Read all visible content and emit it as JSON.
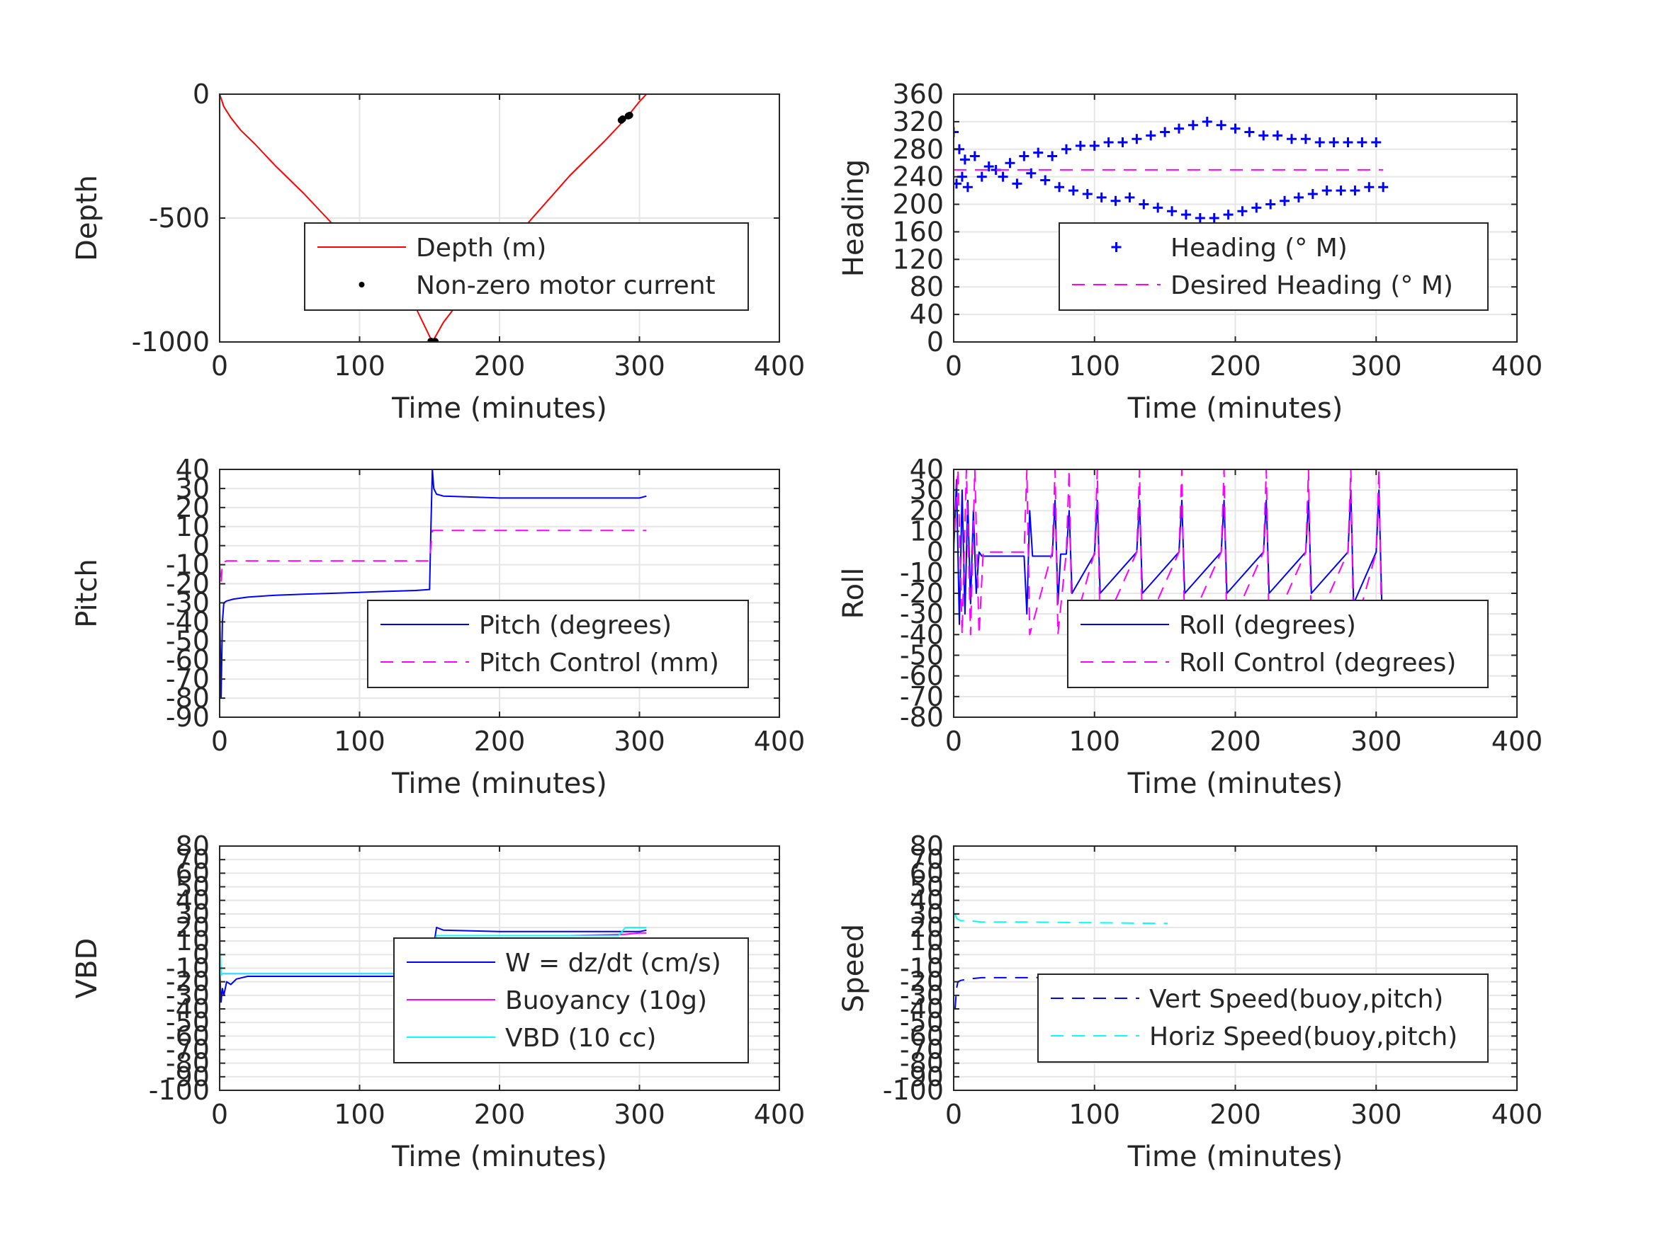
{
  "colors": {
    "red": "#ff0000",
    "blue": "#0000ff",
    "magenta": "#ff00ff",
    "cyan": "#00ffff",
    "black": "#000000",
    "grid": "#e6e6e6",
    "axis": "#262626"
  },
  "chart_data": [
    {
      "type": "line",
      "ylabel": "Depth",
      "xlabel": "Time (minutes)",
      "xlim": [
        0,
        400
      ],
      "ylim": [
        -1000,
        0
      ],
      "xticks": [
        0,
        100,
        200,
        300,
        400
      ],
      "yticks": [
        0,
        -500,
        -1000
      ],
      "grid": true,
      "legend_position": "lower-right",
      "series": [
        {
          "name": "Depth (m)",
          "color": "red",
          "style": "solid",
          "x": [
            0,
            3,
            8,
            15,
            25,
            40,
            60,
            80,
            100,
            120,
            140,
            152,
            160,
            175,
            200,
            225,
            250,
            275,
            290,
            300,
            305
          ],
          "y": [
            0,
            -50,
            -95,
            -145,
            -200,
            -290,
            -400,
            -520,
            -630,
            -740,
            -860,
            -1000,
            -920,
            -810,
            -650,
            -490,
            -330,
            -190,
            -100,
            -30,
            0
          ]
        },
        {
          "name": "Non-zero motor current",
          "color": "black",
          "style": "dot",
          "x": [
            151,
            152,
            153,
            154,
            287,
            288,
            292,
            293
          ],
          "y": [
            -997,
            -1000,
            -1000,
            -998,
            -105,
            -100,
            -88,
            -85
          ]
        }
      ]
    },
    {
      "type": "line",
      "ylabel": "Heading",
      "xlabel": "Time (minutes)",
      "xlim": [
        0,
        400
      ],
      "ylim": [
        0,
        360
      ],
      "xticks": [
        0,
        100,
        200,
        300,
        400
      ],
      "yticks": [
        0,
        40,
        80,
        120,
        160,
        200,
        240,
        280,
        320,
        360
      ],
      "grid": true,
      "legend_position": "lower-right",
      "series": [
        {
          "name": "Heading (° M)",
          "color": "blue",
          "style": "plus",
          "x": [
            0,
            2,
            4,
            6,
            8,
            10,
            15,
            20,
            25,
            30,
            35,
            40,
            45,
            50,
            55,
            60,
            65,
            70,
            75,
            80,
            85,
            90,
            95,
            100,
            105,
            110,
            115,
            120,
            125,
            130,
            135,
            140,
            145,
            150,
            155,
            160,
            165,
            170,
            175,
            180,
            185,
            190,
            195,
            200,
            205,
            210,
            215,
            220,
            225,
            230,
            235,
            240,
            245,
            250,
            255,
            260,
            265,
            270,
            275,
            280,
            285,
            290,
            295,
            300,
            305
          ],
          "y": [
            305,
            230,
            280,
            240,
            265,
            225,
            270,
            240,
            255,
            250,
            240,
            260,
            230,
            270,
            245,
            275,
            235,
            270,
            225,
            280,
            220,
            285,
            215,
            285,
            210,
            290,
            205,
            290,
            210,
            295,
            200,
            300,
            195,
            305,
            190,
            310,
            185,
            315,
            180,
            320,
            180,
            315,
            185,
            310,
            190,
            305,
            195,
            300,
            200,
            300,
            205,
            295,
            210,
            295,
            215,
            290,
            220,
            290,
            220,
            290,
            220,
            290,
            225,
            290,
            225
          ]
        },
        {
          "name": "Desired Heading (° M)",
          "color": "magenta",
          "style": "dash",
          "x": [
            0,
            50,
            100,
            150,
            200,
            250,
            305
          ],
          "y": [
            250,
            250,
            250,
            250,
            250,
            250,
            250
          ]
        }
      ]
    },
    {
      "type": "line",
      "ylabel": "Pitch",
      "xlabel": "Time (minutes)",
      "xlim": [
        0,
        400
      ],
      "ylim": [
        -90,
        40
      ],
      "xticks": [
        0,
        100,
        200,
        300,
        400
      ],
      "yticks": [
        40,
        30,
        20,
        10,
        0,
        -10,
        -20,
        -30,
        -40,
        -50,
        -60,
        -70,
        -80,
        -90
      ],
      "grid": true,
      "legend_position": "lower-right",
      "series": [
        {
          "name": "Pitch (degrees)",
          "color": "blue",
          "style": "solid",
          "x": [
            0,
            1,
            2,
            3,
            5,
            10,
            20,
            40,
            60,
            80,
            100,
            120,
            140,
            150,
            151,
            152,
            153,
            155,
            160,
            180,
            200,
            220,
            240,
            260,
            280,
            300,
            305
          ],
          "y": [
            -30,
            -80,
            -40,
            -30,
            -29,
            -28,
            -27,
            -26,
            -25.5,
            -25,
            -24.5,
            -24,
            -23.5,
            -23,
            10,
            40,
            30,
            27,
            26,
            25.5,
            25,
            25,
            25,
            25,
            25,
            25,
            26
          ]
        },
        {
          "name": "Pitch Control (mm)",
          "color": "magenta",
          "style": "dash",
          "x": [
            0,
            1,
            2,
            5,
            50,
            100,
            150,
            151,
            152,
            155,
            200,
            250,
            300,
            305
          ],
          "y": [
            -10,
            -20,
            -9,
            -8,
            -8,
            -8,
            -8,
            0,
            8,
            8,
            8,
            8,
            8,
            8
          ]
        }
      ]
    },
    {
      "type": "line",
      "ylabel": "Roll",
      "xlabel": "Time (minutes)",
      "xlim": [
        0,
        400
      ],
      "ylim": [
        -80,
        40
      ],
      "xticks": [
        0,
        100,
        200,
        300,
        400
      ],
      "yticks": [
        40,
        30,
        20,
        10,
        0,
        -10,
        -20,
        -30,
        -40,
        -50,
        -60,
        -70,
        -80
      ],
      "grid": true,
      "legend_position": "lower-right",
      "series": [
        {
          "name": "Roll (degrees)",
          "color": "blue",
          "style": "solid",
          "x": [
            0,
            2,
            4,
            6,
            8,
            10,
            12,
            14,
            16,
            18,
            20,
            50,
            52,
            54,
            56,
            70,
            72,
            74,
            76,
            80,
            82,
            84,
            100,
            102,
            104,
            130,
            132,
            134,
            160,
            162,
            164,
            190,
            192,
            194,
            220,
            222,
            224,
            250,
            252,
            254,
            280,
            282,
            284,
            300,
            302,
            304,
            305
          ],
          "y": [
            0,
            35,
            -35,
            30,
            -30,
            25,
            -25,
            20,
            -20,
            0,
            -2,
            -2,
            -30,
            20,
            -2,
            -2,
            25,
            -25,
            -1,
            -1,
            20,
            -20,
            -1,
            25,
            -20,
            0,
            25,
            -20,
            0,
            25,
            -20,
            0,
            25,
            -20,
            0,
            25,
            -20,
            0,
            25,
            -20,
            0,
            30,
            -25,
            0,
            30,
            -25,
            -25
          ]
        },
        {
          "name": "Roll Control (degrees)",
          "color": "magenta",
          "style": "dash",
          "x": [
            0,
            3,
            6,
            9,
            12,
            15,
            18,
            21,
            50,
            52,
            54,
            70,
            72,
            74,
            80,
            82,
            84,
            100,
            102,
            104,
            130,
            132,
            134,
            160,
            162,
            164,
            190,
            192,
            194,
            220,
            222,
            224,
            250,
            252,
            254,
            280,
            282,
            284,
            300,
            302,
            304
          ],
          "y": [
            0,
            40,
            -40,
            40,
            -40,
            40,
            -40,
            0,
            0,
            40,
            -40,
            0,
            40,
            -40,
            0,
            40,
            -40,
            0,
            40,
            -40,
            0,
            40,
            -40,
            0,
            40,
            -40,
            0,
            40,
            -40,
            0,
            40,
            -40,
            0,
            40,
            -40,
            0,
            40,
            -40,
            0,
            40,
            -40
          ]
        }
      ]
    },
    {
      "type": "line",
      "ylabel": "VBD",
      "xlabel": "Time (minutes)",
      "xlim": [
        0,
        400
      ],
      "ylim": [
        -100,
        80
      ],
      "xticks": [
        0,
        100,
        200,
        300,
        400
      ],
      "yticks": [
        80,
        70,
        60,
        50,
        40,
        30,
        20,
        10,
        0,
        -10,
        -20,
        -30,
        -40,
        -50,
        -60,
        -70,
        -80,
        -90,
        -100
      ],
      "grid": true,
      "legend_position": "lower-right",
      "series": [
        {
          "name": "W = dz/dt (cm/s)",
          "color": "blue",
          "style": "solid",
          "x": [
            0,
            1,
            2,
            3,
            5,
            8,
            12,
            20,
            50,
            100,
            150,
            152,
            155,
            160,
            200,
            250,
            290,
            300,
            305
          ],
          "y": [
            -10,
            -35,
            -25,
            -30,
            -20,
            -22,
            -18,
            -16,
            -16,
            -16,
            -16,
            0,
            20,
            18,
            17,
            17,
            17,
            17,
            18
          ]
        },
        {
          "name": "Buoyancy (10g)",
          "color": "magenta",
          "style": "solid",
          "x": [
            0,
            1,
            2,
            5,
            20,
            50,
            100,
            150,
            152,
            155,
            200,
            250,
            290,
            300,
            305
          ],
          "y": [
            0,
            -15,
            -14,
            -14,
            -14,
            -14,
            -14,
            -14,
            5,
            14,
            14,
            14,
            15,
            16,
            16
          ]
        },
        {
          "name": "VBD (10 cc)",
          "color": "cyan",
          "style": "solid",
          "x": [
            0,
            1,
            2,
            5,
            20,
            50,
            100,
            150,
            152,
            155,
            200,
            250,
            285,
            290,
            300,
            305
          ],
          "y": [
            25,
            -15,
            -14,
            -14,
            -14,
            -14,
            -14,
            -14,
            5,
            14,
            14,
            14,
            14,
            20,
            20,
            20
          ]
        }
      ]
    },
    {
      "type": "line",
      "ylabel": "Speed",
      "xlabel": "Time (minutes)",
      "xlim": [
        0,
        400
      ],
      "ylim": [
        -100,
        80
      ],
      "xticks": [
        0,
        100,
        200,
        300,
        400
      ],
      "yticks": [
        80,
        70,
        60,
        50,
        40,
        30,
        20,
        10,
        0,
        -10,
        -20,
        -30,
        -40,
        -50,
        -60,
        -70,
        -80,
        -90,
        -100
      ],
      "grid": true,
      "legend_position": "lower-right",
      "series": [
        {
          "name": "Vert Speed(buoy,pitch)",
          "color": "blue",
          "style": "dash",
          "x": [
            1,
            2,
            3,
            5,
            10,
            20,
            50,
            100,
            150,
            152
          ],
          "y": [
            -40,
            -25,
            -20,
            -19,
            -18,
            -17,
            -17,
            -16.5,
            -16,
            -16
          ]
        },
        {
          "name": "Horiz Speed(buoy,pitch)",
          "color": "cyan",
          "style": "dash",
          "x": [
            1,
            2,
            3,
            5,
            10,
            20,
            50,
            100,
            150,
            152
          ],
          "y": [
            30,
            27,
            26,
            25,
            25,
            24,
            24,
            23.5,
            23,
            23
          ]
        }
      ]
    }
  ]
}
